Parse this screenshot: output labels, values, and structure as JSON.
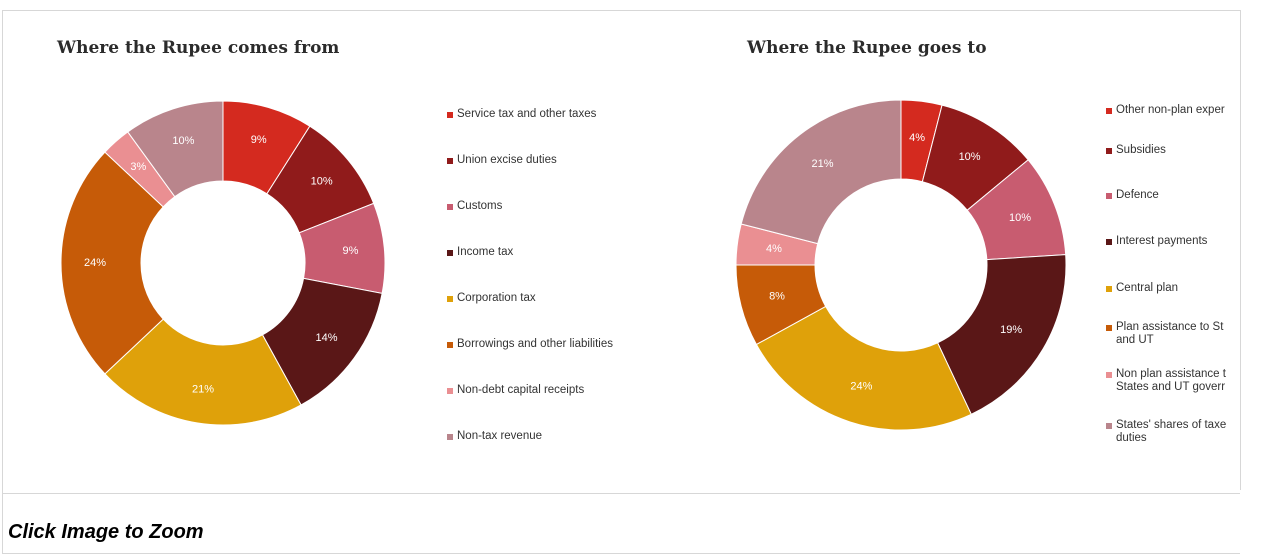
{
  "caption": "Click Image to Zoom",
  "chart_data": [
    {
      "type": "pie",
      "subtype": "donut",
      "title": "Where the Rupee comes from",
      "categories": [
        "Service tax and other taxes",
        "Union excise duties",
        "Customs",
        "Income tax",
        "Corporation tax",
        "Borrowings and other liabilities",
        "Non-debt capital receipts",
        "Non-tax revenue"
      ],
      "values": [
        9,
        10,
        9,
        14,
        21,
        24,
        3,
        10
      ],
      "labels": [
        "9%",
        "10%",
        "9%",
        "14%",
        "21%",
        "24%",
        "3%",
        "10%"
      ],
      "colors": [
        "#d42a1f",
        "#901b1b",
        "#c85c70",
        "#5a1717",
        "#dfa10a",
        "#c65b08",
        "#ea8f92",
        "#b9858c"
      ],
      "legend_position": "right"
    },
    {
      "type": "pie",
      "subtype": "donut",
      "title": "Where the Rupee goes to",
      "categories": [
        "Other non-plan exper",
        "Subsidies",
        "Defence",
        "Interest payments",
        "Central plan",
        "Plan assistance to St and UT",
        "Non plan assistance t States and UT goverr",
        "States' shares of taxe duties"
      ],
      "values": [
        4,
        10,
        10,
        19,
        24,
        8,
        4,
        21
      ],
      "labels": [
        "4%",
        "10%",
        "10%",
        "19%",
        "24%",
        "8%",
        "4%",
        "21%"
      ],
      "colors": [
        "#d42a1f",
        "#901b1b",
        "#c85c70",
        "#5a1717",
        "#dfa10a",
        "#c65b08",
        "#ea8f92",
        "#b9858c"
      ],
      "legend_position": "right"
    }
  ]
}
